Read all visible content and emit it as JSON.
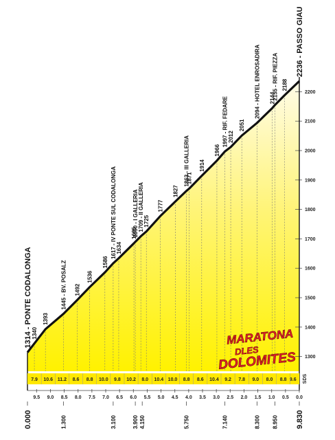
{
  "chart_data": {
    "type": "area",
    "x_unit": "km",
    "xlim": [
      0,
      9.83
    ],
    "ylim": [
      1250,
      2236
    ],
    "y_ticks": [
      1300,
      1400,
      1500,
      1600,
      1700,
      1800,
      1900,
      2000,
      2100,
      2200
    ],
    "x_ticks_remaining": [
      "9.5",
      "9.0",
      "8.5",
      "8.0",
      "7.5",
      "7.0",
      "6.5",
      "6.0",
      "5.5",
      "5.0",
      "4.5",
      "4.0",
      "3.5",
      "3.0",
      "2.5",
      "2.0",
      "1.5",
      "1.0",
      "0.5",
      "0.0"
    ],
    "grade_label": "SDS",
    "grades": [
      {
        "x": 0.25,
        "label": "7.9"
      },
      {
        "x": 0.75,
        "label": "10.6"
      },
      {
        "x": 1.25,
        "label": "11.2"
      },
      {
        "x": 1.75,
        "label": "8.6"
      },
      {
        "x": 2.25,
        "label": "8.8"
      },
      {
        "x": 2.75,
        "label": "10.0"
      },
      {
        "x": 3.25,
        "label": "9.8"
      },
      {
        "x": 3.75,
        "label": "10.2"
      },
      {
        "x": 4.25,
        "label": "8.0"
      },
      {
        "x": 4.75,
        "label": "10.4"
      },
      {
        "x": 5.25,
        "label": "10.0"
      },
      {
        "x": 5.75,
        "label": "8.8"
      },
      {
        "x": 6.25,
        "label": "8.6"
      },
      {
        "x": 6.75,
        "label": "10.4"
      },
      {
        "x": 7.25,
        "label": "9.2"
      },
      {
        "x": 7.75,
        "label": "7.8"
      },
      {
        "x": 8.25,
        "label": "9.0"
      },
      {
        "x": 8.75,
        "label": "8.0"
      },
      {
        "x": 9.25,
        "label": "8.8"
      },
      {
        "x": 9.6,
        "label": "9.6"
      }
    ],
    "profile": [
      {
        "x": 0.0,
        "y": 1314
      },
      {
        "x": 0.65,
        "y": 1393
      },
      {
        "x": 1.3,
        "y": 1445
      },
      {
        "x": 1.8,
        "y": 1492
      },
      {
        "x": 2.25,
        "y": 1536
      },
      {
        "x": 2.8,
        "y": 1586
      },
      {
        "x": 3.1,
        "y": 1617
      },
      {
        "x": 3.3,
        "y": 1634
      },
      {
        "x": 3.85,
        "y": 1685
      },
      {
        "x": 3.9,
        "y": 1690
      },
      {
        "x": 4.1,
        "y": 1709
      },
      {
        "x": 4.3,
        "y": 1725
      },
      {
        "x": 4.8,
        "y": 1777
      },
      {
        "x": 5.35,
        "y": 1827
      },
      {
        "x": 5.75,
        "y": 1863
      },
      {
        "x": 5.85,
        "y": 1871
      },
      {
        "x": 6.3,
        "y": 1914
      },
      {
        "x": 6.85,
        "y": 1966
      },
      {
        "x": 7.14,
        "y": 1997
      },
      {
        "x": 7.35,
        "y": 2012
      },
      {
        "x": 7.75,
        "y": 2051
      },
      {
        "x": 8.3,
        "y": 2094
      },
      {
        "x": 8.85,
        "y": 2144
      },
      {
        "x": 8.95,
        "y": 2155
      },
      {
        "x": 9.3,
        "y": 2188
      },
      {
        "x": 9.83,
        "y": 2236
      }
    ],
    "points": [
      {
        "x": 0.0,
        "label": "1314 - PONTE CODALONGA",
        "major": true
      },
      {
        "x": 0.25,
        "label": "1340"
      },
      {
        "x": 0.65,
        "label": "1393"
      },
      {
        "x": 1.3,
        "label": "1445 - BV. POSALZ"
      },
      {
        "x": 1.8,
        "label": "1492"
      },
      {
        "x": 2.25,
        "label": "1536"
      },
      {
        "x": 2.8,
        "label": "1586"
      },
      {
        "x": 3.1,
        "label": "1617 - IV PONTE SUL CODALONGA"
      },
      {
        "x": 3.3,
        "label": "1634"
      },
      {
        "x": 3.85,
        "label": "1685"
      },
      {
        "x": 3.9,
        "label": "1690 - I GALLERIA"
      },
      {
        "x": 4.1,
        "label": "1709 - II GALLERIA"
      },
      {
        "x": 4.3,
        "label": "1725"
      },
      {
        "x": 4.8,
        "label": "1777"
      },
      {
        "x": 5.35,
        "label": "1827"
      },
      {
        "x": 5.75,
        "label": "1863 - III GALLERIA"
      },
      {
        "x": 5.85,
        "label": "1871"
      },
      {
        "x": 6.3,
        "label": "1914"
      },
      {
        "x": 6.85,
        "label": "1966"
      },
      {
        "x": 7.14,
        "label": "1997 - RIF. FEDARE"
      },
      {
        "x": 7.35,
        "label": "2012"
      },
      {
        "x": 7.75,
        "label": "2051"
      },
      {
        "x": 8.3,
        "label": "2094 - HOTEL ENROSADIRA"
      },
      {
        "x": 8.85,
        "label": "2144"
      },
      {
        "x": 8.95,
        "label": "2155 - RIF. PIEZZA"
      },
      {
        "x": 9.3,
        "label": "2188"
      },
      {
        "x": 9.83,
        "label": "2236 - PASSO GIAU",
        "major": true
      }
    ],
    "km_marks": [
      {
        "x": 0.0,
        "label": "0.000",
        "major": true
      },
      {
        "x": 1.3,
        "label": "1.300"
      },
      {
        "x": 3.1,
        "label": "3.100"
      },
      {
        "x": 3.9,
        "label": "3.900"
      },
      {
        "x": 4.15,
        "label": "4.150"
      },
      {
        "x": 5.75,
        "label": "5.750"
      },
      {
        "x": 7.14,
        "label": "7.140"
      },
      {
        "x": 8.3,
        "label": "8.300"
      },
      {
        "x": 8.95,
        "label": "8.950"
      },
      {
        "x": 9.83,
        "label": "9.830",
        "major": true
      }
    ],
    "colors": {
      "fill_bottom": "#fff000",
      "fill_top": "#fffbe0",
      "line": "#111111",
      "grade_band": "#ffe800",
      "logo_red": "#e4202a"
    }
  },
  "logo": {
    "line1": "MARATONA",
    "line2": "DLES",
    "line3": "DOLOMITES"
  }
}
